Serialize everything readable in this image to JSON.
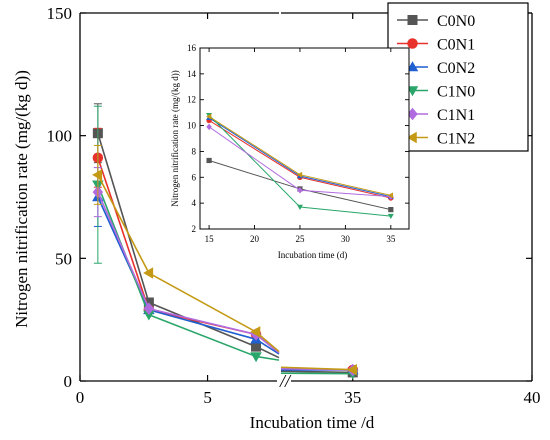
{
  "chart_data": [
    {
      "id": "main",
      "type": "line",
      "xlabel": "Incubation time /d",
      "ylabel": "Nitrogen nitrification rate (mg/(kg d))",
      "ylim": [
        0,
        150
      ],
      "x_segments": [
        [
          0,
          7.8
        ],
        [
          33,
          40
        ]
      ],
      "x_ticks": [
        0,
        5,
        35,
        40
      ],
      "y_ticks": [
        0,
        50,
        100,
        150
      ],
      "break_marker": "//",
      "grid": false,
      "series": [
        {
          "name": "C0N0",
          "color": "#555555",
          "marker": "square",
          "points": [
            [
              0.7,
              101.0
            ],
            [
              2.7,
              32.0
            ],
            [
              6.9,
              14.0
            ],
            [
              7.8,
              9.5
            ],
            [
              33,
              4.0
            ],
            [
              35,
              3.5
            ]
          ],
          "error": [
            [
              0.7,
              12.0
            ]
          ]
        },
        {
          "name": "C0N1",
          "color": "#e8312a",
          "marker": "circle",
          "points": [
            [
              0.7,
              91.0
            ],
            [
              2.7,
              29.0
            ],
            [
              6.9,
              19.0
            ],
            [
              7.8,
              11.5
            ],
            [
              33,
              5.3
            ],
            [
              35,
              4.5
            ]
          ],
          "error": [
            [
              0.7,
              12.0
            ]
          ]
        },
        {
          "name": "C0N2",
          "color": "#1f5fd1",
          "marker": "triangle-up",
          "points": [
            [
              0.7,
              75.0
            ],
            [
              2.7,
              29.0
            ],
            [
              6.9,
              17.0
            ],
            [
              7.8,
              11.0
            ],
            [
              33,
              4.5
            ],
            [
              35,
              4.5
            ]
          ],
          "error": [
            [
              0.7,
              12.0
            ]
          ]
        },
        {
          "name": "C1N0",
          "color": "#2aa66b",
          "marker": "triangle-down",
          "points": [
            [
              0.7,
              80.0
            ],
            [
              2.7,
              27.0
            ],
            [
              6.9,
              10.0
            ],
            [
              7.8,
              8.5
            ],
            [
              33,
              3.2
            ],
            [
              35,
              3.0
            ]
          ],
          "error": [
            [
              0.7,
              32.0
            ]
          ]
        },
        {
          "name": "C1N1",
          "color": "#b16be0",
          "marker": "diamond",
          "points": [
            [
              0.7,
              77.0
            ],
            [
              2.7,
              29.5
            ],
            [
              6.9,
              19.0
            ],
            [
              7.8,
              11.5
            ],
            [
              33,
              5.0
            ],
            [
              35,
              4.5
            ]
          ],
          "error": [
            [
              0.7,
              10.0
            ]
          ]
        },
        {
          "name": "C1N2",
          "color": "#c49a14",
          "marker": "triangle-left",
          "points": [
            [
              0.7,
              84.0
            ],
            [
              2.7,
              44.0
            ],
            [
              6.9,
              20.0
            ],
            [
              7.8,
              12.0
            ],
            [
              33,
              5.6
            ],
            [
              35,
              4.6
            ]
          ],
          "error": [
            [
              0.7,
              12.0
            ]
          ]
        }
      ]
    },
    {
      "id": "inset",
      "type": "line",
      "xlabel": "Incubation time (d)",
      "ylabel": "Nitrogen nitrification rate (mg/(kg d))",
      "xlim": [
        14,
        37
      ],
      "ylim": [
        2,
        16
      ],
      "x_ticks": [
        15,
        20,
        25,
        30,
        35
      ],
      "y_ticks": [
        2,
        4,
        6,
        8,
        10,
        12,
        14,
        16
      ],
      "grid": false,
      "series": [
        {
          "name": "C0N0",
          "points": [
            [
              15,
              7.3
            ],
            [
              25,
              5.1
            ],
            [
              35,
              3.5
            ]
          ]
        },
        {
          "name": "C0N1",
          "points": [
            [
              15,
              10.4
            ],
            [
              25,
              6.0
            ],
            [
              35,
              4.4
            ]
          ]
        },
        {
          "name": "C0N2",
          "points": [
            [
              15,
              10.6
            ],
            [
              25,
              6.1
            ],
            [
              35,
              4.5
            ]
          ]
        },
        {
          "name": "C1N0",
          "points": [
            [
              15,
              10.8
            ],
            [
              25,
              3.7
            ],
            [
              35,
              3.0
            ]
          ]
        },
        {
          "name": "C1N1",
          "points": [
            [
              15,
              9.9
            ],
            [
              25,
              5.0
            ],
            [
              35,
              4.5
            ]
          ]
        },
        {
          "name": "C1N2",
          "points": [
            [
              15,
              10.7
            ],
            [
              25,
              6.2
            ],
            [
              35,
              4.6
            ]
          ]
        }
      ]
    }
  ]
}
